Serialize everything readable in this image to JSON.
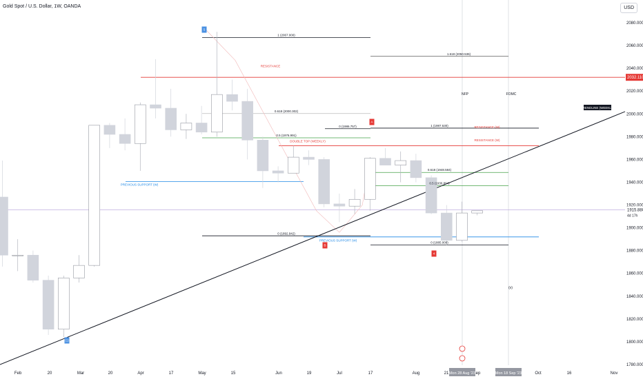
{
  "header": {
    "symbol": "Gold Spot / U.S. Dollar, 1W, OANDA",
    "currency": "USD"
  },
  "chart_data": {
    "type": "candlestick",
    "ylim": [
      1780,
      2100
    ],
    "y_ticks": [
      "2080.000",
      "2060.000",
      "2040.000",
      "2020.000",
      "2000.000",
      "1980.000",
      "1960.000",
      "1940.000",
      "1920.000",
      "1900.000",
      "1880.000",
      "1860.000",
      "1840.000",
      "1820.000",
      "1800.000",
      "1780.000"
    ],
    "x_ticks": [
      "Feb",
      "20",
      "Mar",
      "20",
      "Apr",
      "17",
      "May",
      "15",
      "Jun",
      "19",
      "Jul",
      "17",
      "Aug",
      "21",
      "Sep",
      "Oct",
      "16",
      "Nov"
    ],
    "candles": [
      {
        "o": 1927,
        "h": 1959,
        "l": 1866,
        "c": 1876
      },
      {
        "o": 1876,
        "h": 1890,
        "l": 1862,
        "c": 1876
      },
      {
        "o": 1876,
        "h": 1880,
        "l": 1852,
        "c": 1854
      },
      {
        "o": 1854,
        "h": 1858,
        "l": 1806,
        "c": 1811
      },
      {
        "o": 1811,
        "h": 1858,
        "l": 1804,
        "c": 1856
      },
      {
        "o": 1856,
        "h": 1876,
        "l": 1852,
        "c": 1867
      },
      {
        "o": 1867,
        "h": 1990,
        "l": 1866,
        "c": 1990
      },
      {
        "o": 1990,
        "h": 1992,
        "l": 1970,
        "c": 1982
      },
      {
        "o": 1982,
        "h": 1996,
        "l": 1968,
        "c": 1974
      },
      {
        "o": 1974,
        "h": 2010,
        "l": 1950,
        "c": 2008
      },
      {
        "o": 2008,
        "h": 2048,
        "l": 1996,
        "c": 2005
      },
      {
        "o": 2005,
        "h": 2022,
        "l": 1980,
        "c": 1986
      },
      {
        "o": 1986,
        "h": 2000,
        "l": 1978,
        "c": 1992
      },
      {
        "o": 1992,
        "h": 2007,
        "l": 1982,
        "c": 1984
      },
      {
        "o": 1984,
        "h": 2072,
        "l": 1980,
        "c": 2017
      },
      {
        "o": 2017,
        "h": 2030,
        "l": 2003,
        "c": 2011
      },
      {
        "o": 2011,
        "h": 2022,
        "l": 1960,
        "c": 1977
      },
      {
        "o": 1977,
        "h": 1980,
        "l": 1935,
        "c": 1950
      },
      {
        "o": 1950,
        "h": 1954,
        "l": 1940,
        "c": 1948
      },
      {
        "o": 1948,
        "h": 1972,
        "l": 1948,
        "c": 1962
      },
      {
        "o": 1962,
        "h": 1968,
        "l": 1955,
        "c": 1960
      },
      {
        "o": 1960,
        "h": 1962,
        "l": 1918,
        "c": 1921
      },
      {
        "o": 1921,
        "h": 1930,
        "l": 1905,
        "c": 1919
      },
      {
        "o": 1919,
        "h": 1934,
        "l": 1912,
        "c": 1925
      },
      {
        "o": 1925,
        "h": 1962,
        "l": 1915,
        "c": 1961
      },
      {
        "o": 1961,
        "h": 1970,
        "l": 1955,
        "c": 1955
      },
      {
        "o": 1955,
        "h": 1967,
        "l": 1940,
        "c": 1959
      },
      {
        "o": 1959,
        "h": 1965,
        "l": 1940,
        "c": 1944
      },
      {
        "o": 1944,
        "h": 1946,
        "l": 1912,
        "c": 1913
      },
      {
        "o": 1913,
        "h": 1920,
        "l": 1885,
        "c": 1889
      },
      {
        "o": 1889,
        "h": 1923,
        "l": 1888,
        "c": 1913
      },
      {
        "o": 1913,
        "h": 1915,
        "l": 1911,
        "c": 1915
      }
    ],
    "price_labels": [
      {
        "text": "1 (2067.000)",
        "y": 2067
      },
      {
        "text": "1.618 (2050.536)",
        "y": 2050.5
      },
      {
        "text": "0.618 (2000.302)",
        "y": 2000.3
      },
      {
        "text": "0.5 (1976.991)",
        "y": 1979
      },
      {
        "text": "0 (1986.757)",
        "y": 1987
      },
      {
        "text": "1 (1987.530)",
        "y": 1987.5
      },
      {
        "text": "0.618 (1948.584)",
        "y": 1948.6
      },
      {
        "text": "0.5 (1936.894)",
        "y": 1936.9
      },
      {
        "text": "0 (1892.942)",
        "y": 1892.9
      },
      {
        "text": "0 (1885.000)",
        "y": 1885
      }
    ],
    "annotations": {
      "resistance": "RESISTANCE",
      "resistance_w1": "RESISTANCE (W)",
      "resistance_w2": "RESISTANCE (W)",
      "double_top": "DOUBLE TOP (WEEKLY)",
      "prev_support_w1": "PREVIOUS SUPPORT (W)",
      "prev_support_w2": "PREVIOUS SUPPORT (W)",
      "trendline": "TRENDLINE (WEEKLY)",
      "nfp": "NFP",
      "fomc": "FOMC",
      "wave_v": "(v)",
      "marker_1": "(1)",
      "marker_4": "4",
      "marker_5": "5",
      "marker_a": "A",
      "marker_b": "B",
      "marker_top": "5"
    },
    "current_price_label": "1915.880",
    "current_price_sub": "4d 17h",
    "resistance_price_label": "2032.110",
    "date_labels": [
      "Mon 28 Aug '23",
      "Mon 18 Sep '23"
    ]
  }
}
